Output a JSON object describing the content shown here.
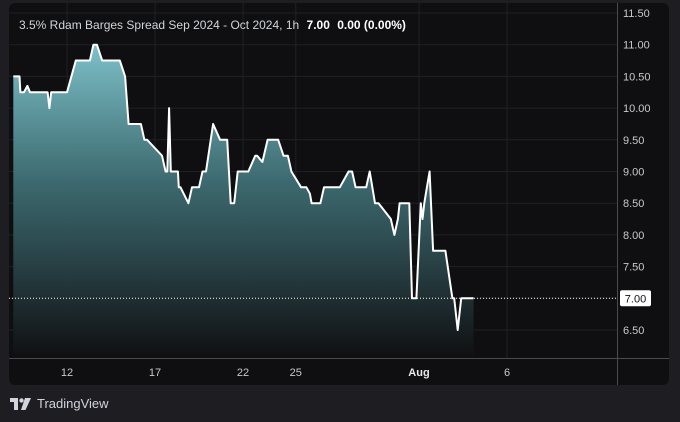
{
  "legend": {
    "title": "3.5% Rdam Barges Spread Sep 2024 - Oct 2024, 1h",
    "last": "7.00",
    "change": "0.00 (0.00%)"
  },
  "brand": {
    "name": "TradingView"
  },
  "colors": {
    "line": "#ffffff",
    "area_top": "#7ec1c9",
    "area_bottom": "#0f0f11",
    "background": "#0f0f11"
  },
  "chart_data": {
    "type": "area",
    "ylim": [
      6.0,
      11.6
    ],
    "y_ticks": [
      "11.50",
      "11.00",
      "10.50",
      "10.00",
      "9.50",
      "9.00",
      "8.50",
      "8.00",
      "7.50",
      "7.00",
      "6.50"
    ],
    "x_ticks": [
      {
        "label": "12",
        "day": 12
      },
      {
        "label": "17",
        "day": 17
      },
      {
        "label": "22",
        "day": 22
      },
      {
        "label": "25",
        "day": 25
      },
      {
        "label": "Aug",
        "day": 32
      },
      {
        "label": "6",
        "day": 37
      }
    ],
    "last_price_label": "7.00",
    "last_price": 7.0,
    "series": [
      {
        "x": [
          8.95,
          9.3,
          9.35,
          9.55,
          9.75,
          9.9,
          10.2,
          10.9,
          11.0,
          11.1,
          11.8,
          12.0,
          12.5,
          13.3,
          13.5,
          13.7,
          14.0,
          14.2,
          14.6,
          15.0,
          15.3,
          15.5,
          15.8,
          16.2,
          16.4,
          16.55,
          17.4,
          17.6,
          17.7,
          17.8,
          17.9,
          18.1,
          18.3,
          18.35,
          18.45,
          18.9,
          19.1,
          19.3,
          19.4,
          19.5,
          19.7,
          19.9,
          20.3,
          20.7,
          20.9,
          21.1,
          21.3,
          21.5,
          21.7,
          22.3,
          22.7,
          22.8,
          23.1,
          23.4,
          24.0,
          24.3,
          24.4,
          24.55,
          24.75,
          25.3,
          25.6,
          25.8,
          25.9,
          26.4,
          26.6,
          26.8,
          27.0,
          27.3,
          27.5,
          28.0,
          28.2,
          28.4,
          28.8,
          29.0,
          29.2,
          29.5,
          29.7,
          30.4,
          30.6,
          30.8,
          30.9,
          31.1,
          31.3,
          31.45,
          31.6,
          31.85,
          32.1,
          32.2,
          32.3,
          32.45,
          32.6,
          32.8,
          32.9,
          33.4,
          33.5,
          33.9,
          34.0,
          34.2,
          34.4,
          35.1
        ],
        "y": [
          10.5,
          10.5,
          10.25,
          10.25,
          10.35,
          10.25,
          10.25,
          10.25,
          10.0,
          10.25,
          10.25,
          10.25,
          10.75,
          10.75,
          11.0,
          11.0,
          10.75,
          10.75,
          10.75,
          10.75,
          10.5,
          9.75,
          9.75,
          9.75,
          9.5,
          9.5,
          9.25,
          9.0,
          9.0,
          10.0,
          9.0,
          9.0,
          9.0,
          8.75,
          8.75,
          8.5,
          8.75,
          8.75,
          8.75,
          8.75,
          9.0,
          9.0,
          9.75,
          9.5,
          9.5,
          9.5,
          8.5,
          8.5,
          9.0,
          9.0,
          9.25,
          9.25,
          9.15,
          9.5,
          9.5,
          9.25,
          9.25,
          9.25,
          9.0,
          8.75,
          8.75,
          8.65,
          8.5,
          8.5,
          8.75,
          8.75,
          8.75,
          8.75,
          8.75,
          9.0,
          9.0,
          8.75,
          8.75,
          8.75,
          9.0,
          8.5,
          8.5,
          8.25,
          8.0,
          8.25,
          8.5,
          8.5,
          8.5,
          8.5,
          7.0,
          7.0,
          8.5,
          8.25,
          8.5,
          8.75,
          9.0,
          7.75,
          7.75,
          7.75,
          7.75,
          7.0,
          7.0,
          6.5,
          7.0,
          7.0
        ]
      }
    ]
  }
}
